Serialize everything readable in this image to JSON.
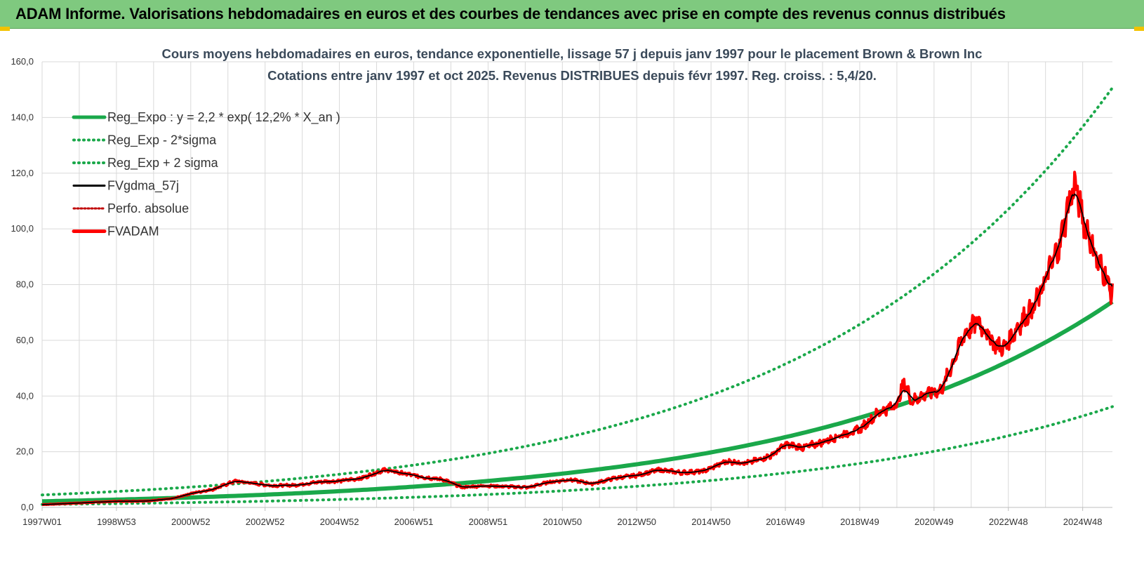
{
  "header": {
    "title": "ADAM Informe. Valorisations hebdomadaires en euros et des courbes de tendances avec prise en compte des revenus connus distribués"
  },
  "colors": {
    "header_bg": "#7fc97f",
    "trend": "#1aa84a",
    "band": "#1aa84a",
    "smooth": "#000000",
    "perfo": "#c00000",
    "fvadam": "#ff0000",
    "grid": "#d9d9d9"
  },
  "chart_data": {
    "type": "line",
    "title": "Cours moyens hebdomadaires en euros, tendance exponentielle, lissage 57 j depuis janv 1997 pour le placement Brown & Brown Inc",
    "subtitle": "Cotations entre janv 1997 et oct 2025. Revenus DISTRIBUES depuis févr 1997. Reg. croiss. : 5,4/20.",
    "xlabel": "",
    "ylabel": "",
    "ylim": [
      0,
      160
    ],
    "xlim": [
      1997.0,
      2025.8
    ],
    "grid": true,
    "legend_position": "top-left",
    "y_ticks": [
      "0,0",
      "20,0",
      "40,0",
      "60,0",
      "80,0",
      "100,0",
      "120,0",
      "140,0",
      "160,0"
    ],
    "y_tick_values": [
      0,
      20,
      40,
      60,
      80,
      100,
      120,
      140,
      160
    ],
    "x_ticks": [
      "1997W01",
      "1998W53",
      "2000W52",
      "2002W52",
      "2004W52",
      "2006W51",
      "2008W51",
      "2010W50",
      "2012W50",
      "2014W50",
      "2016W49",
      "2018W49",
      "2020W49",
      "2022W48",
      "2024W48"
    ],
    "x_tick_values": [
      1997.0,
      1999.0,
      2001.0,
      2003.0,
      2005.0,
      2007.0,
      2009.0,
      2011.0,
      2013.0,
      2015.0,
      2017.0,
      2019.0,
      2021.0,
      2023.0,
      2025.0
    ],
    "trend": {
      "a": 2.2,
      "rate": 0.122
    },
    "series": [
      {
        "name": "Reg_Expo : y = 2,2 * exp( 12,2% *  X_an )",
        "style": "solid-thick",
        "color": "#1aa84a"
      },
      {
        "name": "Reg_Exp - 2*sigma",
        "style": "dotted",
        "color": "#1aa84a",
        "factor": 0.49
      },
      {
        "name": "Reg_Exp + 2 sigma",
        "style": "dotted",
        "color": "#1aa84a",
        "factor": 2.04
      },
      {
        "name": "FVgdma_57j",
        "style": "solid",
        "color": "#000000"
      },
      {
        "name": "Perfo. absolue",
        "style": "dotted-red",
        "color": "#c00000"
      },
      {
        "name": "FVADAM",
        "style": "solid-thick",
        "color": "#ff0000",
        "x": [
          1997.0,
          1998.0,
          1999.0,
          1999.8,
          2000.5,
          2001.0,
          2001.6,
          2002.2,
          2002.6,
          2003.2,
          2003.8,
          2004.5,
          2005.0,
          2005.6,
          2006.2,
          2006.8,
          2007.3,
          2007.8,
          2008.3,
          2008.9,
          2009.5,
          2010.1,
          2010.6,
          2011.2,
          2011.8,
          2012.4,
          2013.0,
          2013.6,
          2014.2,
          2014.8,
          2015.4,
          2016.0,
          2016.6,
          2017.0,
          2017.5,
          2018.0,
          2018.5,
          2019.0,
          2019.5,
          2020.0,
          2020.2,
          2020.4,
          2020.8,
          2021.2,
          2021.6,
          2021.8,
          2022.2,
          2022.6,
          2022.9,
          2023.3,
          2023.7,
          2024.1,
          2024.4,
          2024.6,
          2024.8,
          2025.0,
          2025.2,
          2025.4,
          2025.6,
          2025.8
        ],
        "y": [
          1.0,
          1.6,
          2.2,
          2.3,
          3.1,
          5.0,
          6.5,
          9.5,
          8.8,
          7.8,
          8.0,
          9.2,
          9.5,
          10.5,
          13.5,
          12.0,
          10.8,
          10.0,
          7.2,
          7.8,
          7.5,
          7.2,
          9.0,
          10.0,
          8.5,
          10.5,
          11.5,
          13.5,
          12.5,
          13.0,
          16.5,
          16.0,
          18.5,
          22.5,
          21.5,
          23.5,
          26.0,
          28.0,
          34.0,
          37.0,
          45.0,
          38.0,
          41.0,
          42.0,
          55.0,
          62.0,
          67.0,
          59.0,
          57.0,
          66.0,
          72.0,
          85.0,
          95.0,
          108.0,
          116.0,
          104.0,
          97.0,
          88.0,
          84.0,
          76.0
        ]
      }
    ]
  }
}
